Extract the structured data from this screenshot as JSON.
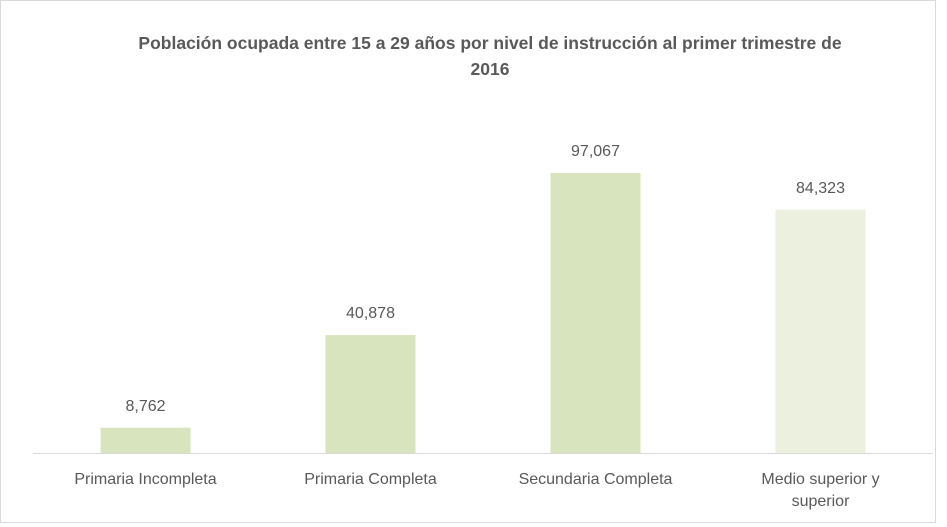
{
  "chart_data": {
    "type": "bar",
    "title": "Población ocupada entre 15 a 29 años por nivel de instrucción al primer trimestre de 2016",
    "categories": [
      "Primaria Incompleta",
      "Primaria Completa",
      "Secundaria Completa",
      "Medio superior y superior"
    ],
    "values": [
      8762,
      40878,
      97067,
      84323
    ],
    "value_labels": [
      "8,762",
      "40,878",
      "97,067",
      "84,323"
    ],
    "colors": [
      "#d7e4bd",
      "#d7e4bd",
      "#d7e4bd",
      "#ebf1de"
    ]
  }
}
